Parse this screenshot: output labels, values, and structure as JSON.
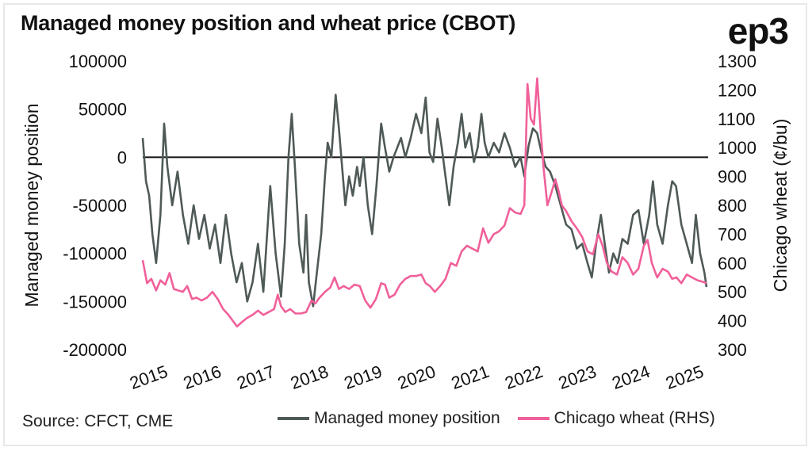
{
  "brand": {
    "logo_text": "ep3"
  },
  "chart_data": {
    "type": "line",
    "title": "Managed money position and wheat price (CBOT)",
    "source": "Source: CFCT, CME",
    "x_ticks": [
      "2015",
      "2016",
      "2017",
      "2018",
      "2019",
      "2020",
      "2021",
      "2022",
      "2023",
      "2024",
      "2025"
    ],
    "x_range": [
      2015.0,
      2025.55
    ],
    "left_axis": {
      "label": "Managed money position",
      "ylim": [
        -200000,
        100000
      ],
      "ticks": [
        100000,
        50000,
        0,
        -50000,
        -100000,
        -150000,
        -200000
      ],
      "tick_labels": [
        "100000",
        "50000",
        "0",
        "-50000",
        "-100000",
        "-150000",
        "-200000"
      ]
    },
    "right_axis": {
      "label": "Chicago wheat (¢/bu)",
      "ylim": [
        300,
        1300
      ],
      "ticks": [
        1300,
        1200,
        1100,
        1000,
        900,
        800,
        700,
        600,
        500,
        400,
        300
      ],
      "tick_labels": [
        "1300",
        "1200",
        "1100",
        "1000",
        "900",
        "800",
        "700",
        "600",
        "500",
        "400",
        "300"
      ]
    },
    "series": [
      {
        "name": "Managed money position",
        "axis": "left",
        "color": "#4f5a58",
        "points": [
          [
            2015.0,
            20000
          ],
          [
            2015.06,
            -25000
          ],
          [
            2015.12,
            -40000
          ],
          [
            2015.18,
            -80000
          ],
          [
            2015.25,
            -110000
          ],
          [
            2015.33,
            -60000
          ],
          [
            2015.4,
            35000
          ],
          [
            2015.46,
            -10000
          ],
          [
            2015.55,
            -50000
          ],
          [
            2015.65,
            -15000
          ],
          [
            2015.75,
            -60000
          ],
          [
            2015.85,
            -90000
          ],
          [
            2015.95,
            -50000
          ],
          [
            2016.05,
            -85000
          ],
          [
            2016.15,
            -60000
          ],
          [
            2016.25,
            -95000
          ],
          [
            2016.35,
            -70000
          ],
          [
            2016.45,
            -110000
          ],
          [
            2016.55,
            -60000
          ],
          [
            2016.65,
            -100000
          ],
          [
            2016.75,
            -130000
          ],
          [
            2016.85,
            -110000
          ],
          [
            2016.95,
            -150000
          ],
          [
            2017.05,
            -130000
          ],
          [
            2017.15,
            -90000
          ],
          [
            2017.25,
            -140000
          ],
          [
            2017.38,
            -30000
          ],
          [
            2017.48,
            -100000
          ],
          [
            2017.58,
            -145000
          ],
          [
            2017.65,
            -90000
          ],
          [
            2017.72,
            0
          ],
          [
            2017.78,
            45000
          ],
          [
            2017.84,
            -10000
          ],
          [
            2017.92,
            -90000
          ],
          [
            2018.0,
            -120000
          ],
          [
            2018.05,
            -60000
          ],
          [
            2018.1,
            -130000
          ],
          [
            2018.18,
            -155000
          ],
          [
            2018.25,
            -120000
          ],
          [
            2018.33,
            -80000
          ],
          [
            2018.4,
            -20000
          ],
          [
            2018.45,
            15000
          ],
          [
            2018.52,
            0
          ],
          [
            2018.6,
            65000
          ],
          [
            2018.66,
            30000
          ],
          [
            2018.72,
            -10000
          ],
          [
            2018.78,
            -50000
          ],
          [
            2018.85,
            -20000
          ],
          [
            2018.92,
            -40000
          ],
          [
            2019.0,
            -10000
          ],
          [
            2019.05,
            -30000
          ],
          [
            2019.12,
            0
          ],
          [
            2019.2,
            -50000
          ],
          [
            2019.28,
            -80000
          ],
          [
            2019.36,
            -30000
          ],
          [
            2019.45,
            35000
          ],
          [
            2019.52,
            10000
          ],
          [
            2019.6,
            -15000
          ],
          [
            2019.68,
            0
          ],
          [
            2019.75,
            10000
          ],
          [
            2019.82,
            20000
          ],
          [
            2019.9,
            0
          ],
          [
            2020.0,
            20000
          ],
          [
            2020.1,
            45000
          ],
          [
            2020.2,
            25000
          ],
          [
            2020.28,
            62000
          ],
          [
            2020.35,
            5000
          ],
          [
            2020.42,
            -5000
          ],
          [
            2020.5,
            40000
          ],
          [
            2020.58,
            10000
          ],
          [
            2020.65,
            -20000
          ],
          [
            2020.72,
            -50000
          ],
          [
            2020.8,
            -10000
          ],
          [
            2020.88,
            15000
          ],
          [
            2020.95,
            45000
          ],
          [
            2021.02,
            10000
          ],
          [
            2021.1,
            25000
          ],
          [
            2021.18,
            -5000
          ],
          [
            2021.25,
            10000
          ],
          [
            2021.32,
            45000
          ],
          [
            2021.38,
            15000
          ],
          [
            2021.45,
            0
          ],
          [
            2021.55,
            15000
          ],
          [
            2021.65,
            5000
          ],
          [
            2021.75,
            25000
          ],
          [
            2021.85,
            10000
          ],
          [
            2021.95,
            -10000
          ],
          [
            2022.05,
            0
          ],
          [
            2022.12,
            -20000
          ],
          [
            2022.2,
            12000
          ],
          [
            2022.28,
            30000
          ],
          [
            2022.36,
            25000
          ],
          [
            2022.44,
            5000
          ],
          [
            2022.52,
            -10000
          ],
          [
            2022.6,
            -15000
          ],
          [
            2022.7,
            -30000
          ],
          [
            2022.8,
            -50000
          ],
          [
            2022.9,
            -70000
          ],
          [
            2023.0,
            -75000
          ],
          [
            2023.1,
            -95000
          ],
          [
            2023.2,
            -90000
          ],
          [
            2023.3,
            -110000
          ],
          [
            2023.38,
            -125000
          ],
          [
            2023.46,
            -90000
          ],
          [
            2023.55,
            -60000
          ],
          [
            2023.62,
            -90000
          ],
          [
            2023.7,
            -120000
          ],
          [
            2023.78,
            -100000
          ],
          [
            2023.86,
            -110000
          ],
          [
            2023.95,
            -85000
          ],
          [
            2024.05,
            -90000
          ],
          [
            2024.15,
            -60000
          ],
          [
            2024.25,
            -55000
          ],
          [
            2024.35,
            -90000
          ],
          [
            2024.45,
            -60000
          ],
          [
            2024.52,
            -25000
          ],
          [
            2024.6,
            -70000
          ],
          [
            2024.7,
            -90000
          ],
          [
            2024.8,
            -50000
          ],
          [
            2024.88,
            -25000
          ],
          [
            2024.95,
            -30000
          ],
          [
            2025.05,
            -70000
          ],
          [
            2025.15,
            -90000
          ],
          [
            2025.25,
            -110000
          ],
          [
            2025.32,
            -60000
          ],
          [
            2025.4,
            -100000
          ],
          [
            2025.48,
            -120000
          ],
          [
            2025.52,
            -135000
          ]
        ]
      },
      {
        "name": "Chicago wheat (RHS)",
        "axis": "right",
        "color": "#f0609a",
        "points": [
          [
            2015.0,
            610
          ],
          [
            2015.08,
            530
          ],
          [
            2015.16,
            545
          ],
          [
            2015.25,
            505
          ],
          [
            2015.33,
            540
          ],
          [
            2015.42,
            525
          ],
          [
            2015.5,
            565
          ],
          [
            2015.58,
            510
          ],
          [
            2015.66,
            505
          ],
          [
            2015.75,
            500
          ],
          [
            2015.83,
            520
          ],
          [
            2015.92,
            475
          ],
          [
            2016.0,
            480
          ],
          [
            2016.1,
            470
          ],
          [
            2016.2,
            480
          ],
          [
            2016.3,
            500
          ],
          [
            2016.4,
            475
          ],
          [
            2016.5,
            440
          ],
          [
            2016.6,
            420
          ],
          [
            2016.68,
            400
          ],
          [
            2016.76,
            380
          ],
          [
            2016.85,
            395
          ],
          [
            2016.95,
            410
          ],
          [
            2017.05,
            420
          ],
          [
            2017.15,
            435
          ],
          [
            2017.25,
            420
          ],
          [
            2017.35,
            430
          ],
          [
            2017.45,
            440
          ],
          [
            2017.52,
            490
          ],
          [
            2017.58,
            450
          ],
          [
            2017.66,
            430
          ],
          [
            2017.75,
            440
          ],
          [
            2017.85,
            425
          ],
          [
            2017.95,
            425
          ],
          [
            2018.05,
            430
          ],
          [
            2018.15,
            470
          ],
          [
            2018.22,
            460
          ],
          [
            2018.3,
            480
          ],
          [
            2018.4,
            500
          ],
          [
            2018.5,
            515
          ],
          [
            2018.58,
            550
          ],
          [
            2018.66,
            510
          ],
          [
            2018.75,
            520
          ],
          [
            2018.85,
            510
          ],
          [
            2018.95,
            525
          ],
          [
            2019.05,
            520
          ],
          [
            2019.15,
            470
          ],
          [
            2019.25,
            445
          ],
          [
            2019.35,
            475
          ],
          [
            2019.45,
            530
          ],
          [
            2019.52,
            525
          ],
          [
            2019.6,
            480
          ],
          [
            2019.7,
            490
          ],
          [
            2019.8,
            525
          ],
          [
            2019.9,
            545
          ],
          [
            2020.0,
            555
          ],
          [
            2020.1,
            555
          ],
          [
            2020.2,
            560
          ],
          [
            2020.28,
            530
          ],
          [
            2020.36,
            520
          ],
          [
            2020.45,
            500
          ],
          [
            2020.55,
            520
          ],
          [
            2020.65,
            545
          ],
          [
            2020.75,
            600
          ],
          [
            2020.85,
            590
          ],
          [
            2020.95,
            640
          ],
          [
            2021.05,
            660
          ],
          [
            2021.15,
            650
          ],
          [
            2021.25,
            640
          ],
          [
            2021.35,
            720
          ],
          [
            2021.45,
            670
          ],
          [
            2021.55,
            700
          ],
          [
            2021.65,
            710
          ],
          [
            2021.75,
            730
          ],
          [
            2021.85,
            790
          ],
          [
            2021.95,
            775
          ],
          [
            2022.05,
            770
          ],
          [
            2022.12,
            800
          ],
          [
            2022.18,
            1220
          ],
          [
            2022.24,
            1100
          ],
          [
            2022.3,
            1080
          ],
          [
            2022.36,
            1240
          ],
          [
            2022.42,
            1070
          ],
          [
            2022.48,
            930
          ],
          [
            2022.55,
            800
          ],
          [
            2022.62,
            840
          ],
          [
            2022.7,
            890
          ],
          [
            2022.76,
            850
          ],
          [
            2022.82,
            800
          ],
          [
            2022.9,
            780
          ],
          [
            2023.0,
            745
          ],
          [
            2023.1,
            720
          ],
          [
            2023.2,
            690
          ],
          [
            2023.3,
            640
          ],
          [
            2023.4,
            630
          ],
          [
            2023.5,
            700
          ],
          [
            2023.58,
            660
          ],
          [
            2023.66,
            600
          ],
          [
            2023.75,
            570
          ],
          [
            2023.85,
            560
          ],
          [
            2023.95,
            620
          ],
          [
            2024.05,
            600
          ],
          [
            2024.15,
            560
          ],
          [
            2024.25,
            580
          ],
          [
            2024.35,
            660
          ],
          [
            2024.42,
            680
          ],
          [
            2024.5,
            600
          ],
          [
            2024.6,
            550
          ],
          [
            2024.7,
            580
          ],
          [
            2024.8,
            570
          ],
          [
            2024.88,
            545
          ],
          [
            2024.96,
            550
          ],
          [
            2025.05,
            530
          ],
          [
            2025.15,
            560
          ],
          [
            2025.25,
            550
          ],
          [
            2025.35,
            540
          ],
          [
            2025.45,
            535
          ],
          [
            2025.52,
            530
          ]
        ]
      }
    ],
    "grid": false,
    "legend_position": "bottom"
  }
}
